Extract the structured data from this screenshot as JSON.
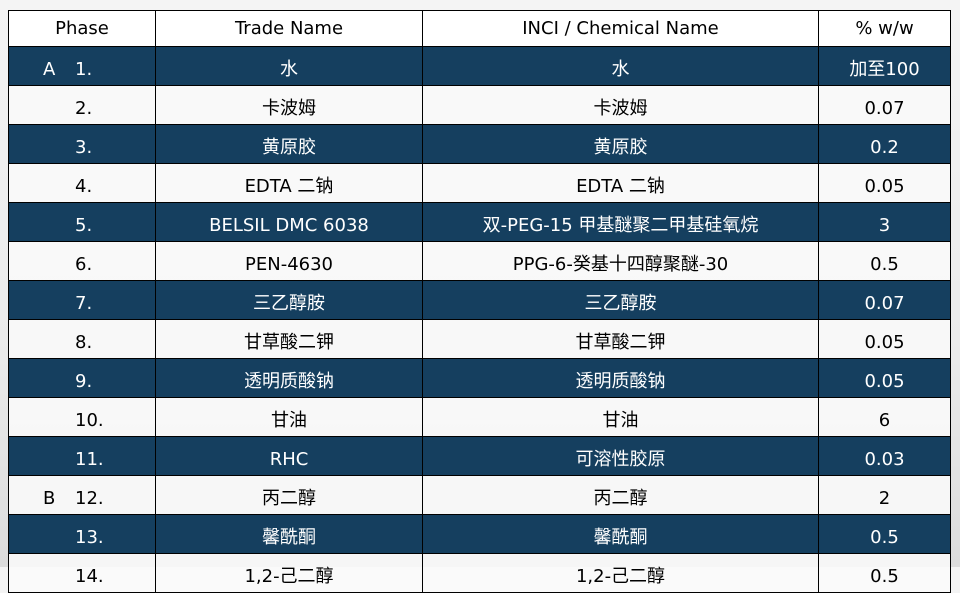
{
  "headers": {
    "phase": "Phase",
    "trade": "Trade Name",
    "inci": "INCI / Chemical Name",
    "pct": "% w/w"
  },
  "colors": {
    "dark_row": "#153f5f",
    "light_row": "#fafafa"
  },
  "rows": [
    {
      "phase": "A",
      "num": "1.",
      "trade": "水",
      "inci": "水",
      "pct": "加至100"
    },
    {
      "phase": "",
      "num": "2.",
      "trade": "卡波姆",
      "inci": "卡波姆",
      "pct": "0.07"
    },
    {
      "phase": "",
      "num": "3.",
      "trade": "黄原胶",
      "inci": "黄原胶",
      "pct": "0.2"
    },
    {
      "phase": "",
      "num": "4.",
      "trade": "EDTA 二钠",
      "inci": "EDTA 二钠",
      "pct": "0.05"
    },
    {
      "phase": "",
      "num": "5.",
      "trade": "BELSIL DMC 6038",
      "inci": "双-PEG-15 甲基醚聚二甲基硅氧烷",
      "pct": "3"
    },
    {
      "phase": "",
      "num": "6.",
      "trade": "PEN-4630",
      "inci": "PPG-6-癸基十四醇聚醚-30",
      "pct": "0.5"
    },
    {
      "phase": "",
      "num": "7.",
      "trade": "三乙醇胺",
      "inci": "三乙醇胺",
      "pct": "0.07"
    },
    {
      "phase": "",
      "num": "8.",
      "trade": "甘草酸二钾",
      "inci": "甘草酸二钾",
      "pct": "0.05"
    },
    {
      "phase": "",
      "num": "9.",
      "trade": "透明质酸钠",
      "inci": "透明质酸钠",
      "pct": "0.05"
    },
    {
      "phase": "",
      "num": "10.",
      "trade": "甘油",
      "inci": "甘油",
      "pct": "6"
    },
    {
      "phase": "",
      "num": "11.",
      "trade": "RHC",
      "inci": "可溶性胶原",
      "pct": "0.03"
    },
    {
      "phase": "B",
      "num": "12.",
      "trade": "丙二醇",
      "inci": "丙二醇",
      "pct": "2"
    },
    {
      "phase": "",
      "num": "13.",
      "trade": "馨酰酮",
      "inci": "馨酰酮",
      "pct": "0.5"
    },
    {
      "phase": "",
      "num": "14.",
      "trade": "1,2-己二醇",
      "inci": "1,2-己二醇",
      "pct": "0.5"
    }
  ]
}
